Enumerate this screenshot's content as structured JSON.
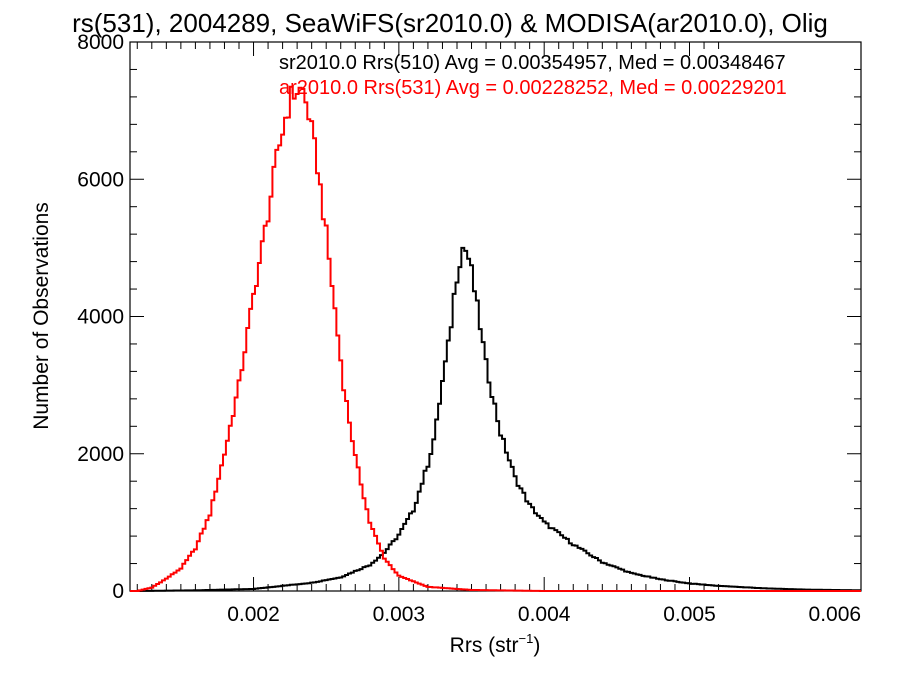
{
  "chart_data": {
    "type": "histogram-step",
    "title": "rs(531), 2004289, SeaWiFS(sr2010.0) & MODISA(ar2010.0), Olig",
    "xlabel": {
      "main": "Rrs (str",
      "sup": "−1",
      "end": ")"
    },
    "ylabel": "Number of Observations",
    "xlim": [
      0.00115,
      0.00618
    ],
    "ylim": [
      0,
      8000
    ],
    "x_ticks": [
      0.002,
      0.003,
      0.004,
      0.005,
      0.006
    ],
    "x_tick_labels": [
      "0.002",
      "0.003",
      "0.004",
      "0.005",
      "0.006"
    ],
    "y_ticks": [
      0,
      2000,
      4000,
      6000,
      8000
    ],
    "y_tick_labels": [
      "0",
      "2000",
      "4000",
      "6000",
      "8000"
    ],
    "bin_width": 2e-05,
    "series": [
      {
        "name": "sr2010.0 Rrs(510) Avg = 0.00354957, Med = 0.00348467",
        "color": "#000000",
        "points": [
          [
            0.0012,
            0
          ],
          [
            0.0016,
            10
          ],
          [
            0.002,
            30
          ],
          [
            0.0024,
            120
          ],
          [
            0.0026,
            200
          ],
          [
            0.0028,
            380
          ],
          [
            0.0029,
            560
          ],
          [
            0.003,
            820
          ],
          [
            0.0031,
            1180
          ],
          [
            0.0032,
            1850
          ],
          [
            0.00325,
            2300
          ],
          [
            0.0033,
            3050
          ],
          [
            0.00335,
            3700
          ],
          [
            0.00338,
            4300
          ],
          [
            0.00341,
            4750
          ],
          [
            0.00344,
            5000
          ],
          [
            0.00347,
            4950
          ],
          [
            0.0035,
            4650
          ],
          [
            0.00355,
            4000
          ],
          [
            0.0036,
            3300
          ],
          [
            0.00365,
            2800
          ],
          [
            0.0037,
            2300
          ],
          [
            0.0038,
            1650
          ],
          [
            0.0039,
            1250
          ],
          [
            0.004,
            1000
          ],
          [
            0.0042,
            680
          ],
          [
            0.0044,
            420
          ],
          [
            0.0046,
            260
          ],
          [
            0.0048,
            170
          ],
          [
            0.005,
            110
          ],
          [
            0.0052,
            75
          ],
          [
            0.0055,
            40
          ],
          [
            0.0058,
            20
          ],
          [
            0.00618,
            10
          ]
        ]
      },
      {
        "name": "ar2010.0 Rrs(531) Avg = 0.00228252, Med = 0.00229201",
        "color": "#ff0000",
        "points": [
          [
            0.0012,
            0
          ],
          [
            0.0013,
            50
          ],
          [
            0.0014,
            180
          ],
          [
            0.0015,
            330
          ],
          [
            0.0016,
            620
          ],
          [
            0.0017,
            1120
          ],
          [
            0.0018,
            2000
          ],
          [
            0.0019,
            3000
          ],
          [
            0.002,
            4300
          ],
          [
            0.0021,
            5500
          ],
          [
            0.00216,
            6300
          ],
          [
            0.00222,
            6900
          ],
          [
            0.00226,
            7200
          ],
          [
            0.0023,
            7300
          ],
          [
            0.00234,
            7280
          ],
          [
            0.00238,
            6950
          ],
          [
            0.00244,
            6200
          ],
          [
            0.0025,
            5200
          ],
          [
            0.00256,
            4100
          ],
          [
            0.00262,
            3000
          ],
          [
            0.0027,
            1950
          ],
          [
            0.0028,
            1000
          ],
          [
            0.0029,
            480
          ],
          [
            0.003,
            220
          ],
          [
            0.0032,
            60
          ],
          [
            0.0035,
            15
          ],
          [
            0.004,
            0
          ],
          [
            0.00618,
            0
          ]
        ]
      }
    ],
    "legend_position": "top-right"
  }
}
